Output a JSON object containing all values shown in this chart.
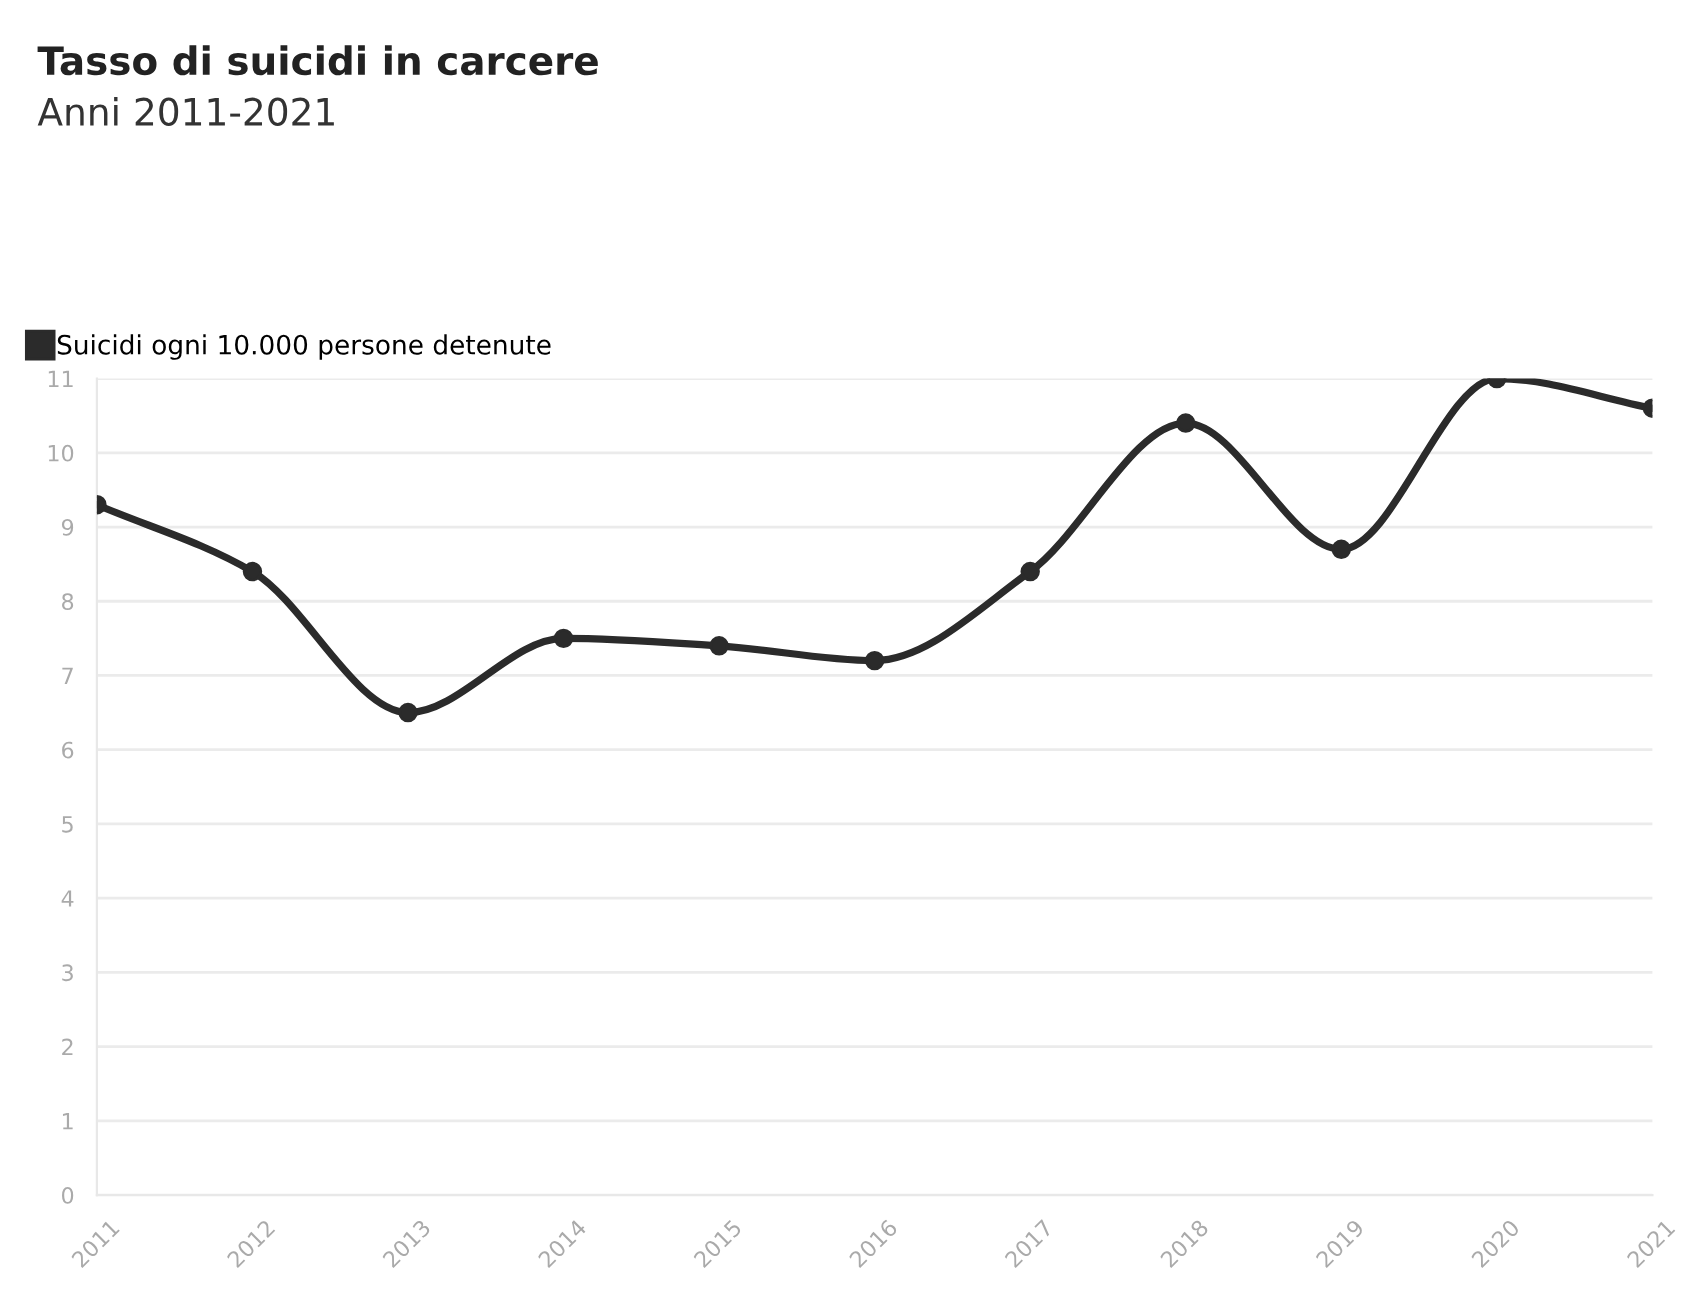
{
  "chart_data": {
    "type": "line",
    "title": "Tasso di suicidi in carcere",
    "subtitle": "Anni 2011-2021",
    "categories": [
      "2011",
      "2012",
      "2013",
      "2014",
      "2015",
      "2016",
      "2017",
      "2018",
      "2019",
      "2020",
      "2021"
    ],
    "series": [
      {
        "name": "Suicidi ogni 10.000 persone detenute",
        "color": "#2b2b2b",
        "values": [
          9.3,
          8.4,
          6.5,
          7.5,
          7.4,
          7.2,
          8.4,
          10.4,
          8.7,
          11.0,
          10.6
        ]
      }
    ],
    "ylim": [
      0,
      11
    ],
    "yticks": [
      0,
      1,
      2,
      3,
      4,
      5,
      6,
      7,
      8,
      9,
      10,
      11
    ],
    "grid": "y",
    "legend": "top left",
    "marker": "circle",
    "line_style": "solid"
  }
}
